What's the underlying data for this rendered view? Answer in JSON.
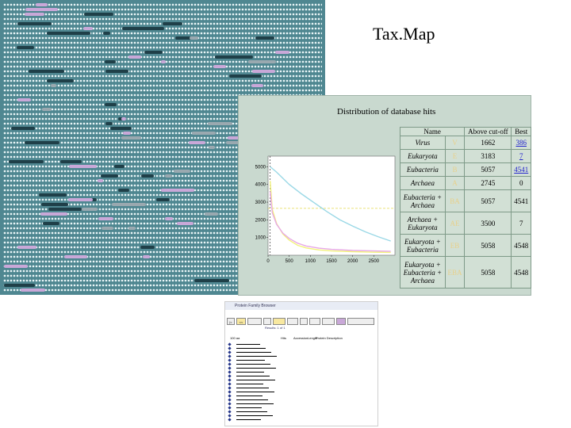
{
  "slide": {
    "title": "Tax.Map"
  },
  "dot_map": {
    "colors": {
      "background": "#4f8791",
      "dot": "#e9f5f7",
      "highlight_pink": "#c9a8d8",
      "highlight_dark": "#1f3f48",
      "highlight_gray": "#9aa9b0"
    }
  },
  "chart": {
    "title": "Distribution of database hits",
    "colors": {
      "panel": "#c9d9cf",
      "line_cyan": "#9ad8e6",
      "line_yellow": "#f2f27a",
      "line_pink": "#e7a8e6"
    }
  },
  "chart_data": {
    "type": "line",
    "title": "Distribution of database hits",
    "xlabel": "",
    "ylabel": "",
    "x_ticks": [
      "0",
      "500",
      "1000",
      "1500",
      "2000",
      "2500"
    ],
    "y_ticks": [
      "1000",
      "2000",
      "3000",
      "4000",
      "5000"
    ],
    "xlim": [
      0,
      3000
    ],
    "ylim": [
      0,
      5600
    ],
    "cutoff_x": 50,
    "cutoff_y": 2650,
    "series": [
      {
        "color": "#9ad8e6",
        "x": [
          50,
          200,
          500,
          800,
          1100,
          1400,
          1700,
          2000,
          2300,
          2600,
          2900
        ],
        "y": [
          5000,
          4700,
          4000,
          3450,
          2950,
          2450,
          2000,
          1650,
          1320,
          1050,
          800
        ]
      },
      {
        "color": "#f2f27a",
        "x": [
          50,
          100,
          200,
          350,
          500,
          700,
          900,
          1200,
          1500,
          2000,
          2500,
          2900
        ],
        "y": [
          4200,
          2600,
          1800,
          1200,
          850,
          560,
          410,
          300,
          240,
          200,
          170,
          160
        ]
      },
      {
        "color": "#e7a8e6",
        "x": [
          50,
          100,
          200,
          350,
          500,
          700,
          900,
          1200,
          1500,
          2000,
          2500,
          2900
        ],
        "y": [
          3600,
          2400,
          1750,
          1250,
          950,
          680,
          520,
          400,
          330,
          270,
          240,
          220
        ]
      }
    ]
  },
  "table": {
    "headers": [
      "Name",
      "Above cut-off",
      "Best"
    ],
    "rows": [
      {
        "name": [
          "Virus"
        ],
        "code": "V",
        "above": "1662",
        "best": "386",
        "best_link": true
      },
      {
        "name": [
          "Eukaryota"
        ],
        "code": "E",
        "above": "3183",
        "best": "7",
        "best_link": true
      },
      {
        "name": [
          "Eubacteria"
        ],
        "code": "B",
        "above": "5057",
        "best": "4541",
        "best_link": true
      },
      {
        "name": [
          "Archaea"
        ],
        "code": "A",
        "above": "2745",
        "best": "0",
        "best_link": false
      },
      {
        "name": [
          "Eubacteria +",
          "Archaea"
        ],
        "code": "BA",
        "above": "5057",
        "best": "4541",
        "best_link": false
      },
      {
        "name": [
          "Archaea +",
          "Eukaryota"
        ],
        "code": "AE",
        "above": "3500",
        "best": "7",
        "best_link": false
      },
      {
        "name": [
          "Eukaryota +",
          "Eubacteria"
        ],
        "code": "EB",
        "above": "5058",
        "best": "4548",
        "best_link": false
      },
      {
        "name": [
          "Eukaryota +",
          "Eubacteria +",
          "Archaea"
        ],
        "code": "EBA",
        "above": "5058",
        "best": "4548",
        "best_link": false
      }
    ]
  },
  "browser": {
    "bar_text": "Protein Family Browser",
    "result_text": "Results: 1 of 1",
    "columns": [
      "Hits",
      "Accession",
      "Length",
      "Protein Description"
    ],
    "axis_label": "100 aa"
  }
}
